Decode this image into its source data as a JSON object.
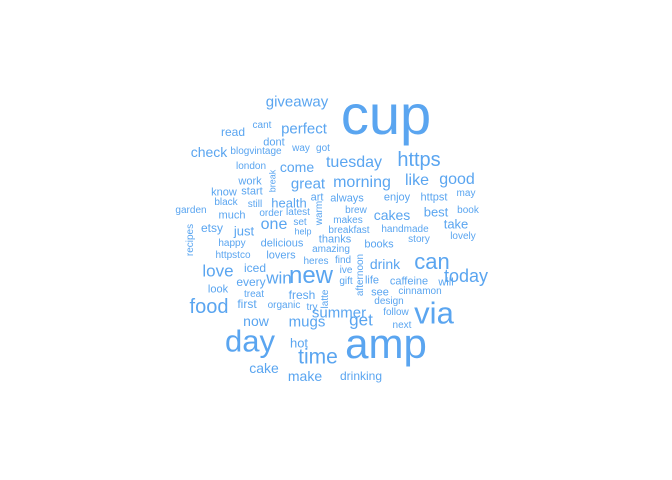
{
  "word_color": "#5aa5f0",
  "words": [
    "cup",
    "amp",
    "day",
    "via",
    "https",
    "new",
    "time",
    "food",
    "can",
    "today",
    "tuesday",
    "morning",
    "like",
    "good",
    "great",
    "love",
    "win",
    "get",
    "mugs",
    "summer",
    "giveaway",
    "perfect",
    "check",
    "one",
    "health",
    "come",
    "cakes",
    "best",
    "take",
    "make",
    "drink",
    "now",
    "cake",
    "hot",
    "fresh",
    "drinking",
    "just",
    "iced",
    "every",
    "first",
    "look",
    "read",
    "cant",
    "dont",
    "way",
    "got",
    "blogvintage",
    "london",
    "work",
    "break",
    "start",
    "know",
    "black",
    "garden",
    "much",
    "etsy",
    "recipes",
    "happy",
    "httpstco",
    "lovers",
    "delicious",
    "heres",
    "find",
    "ive",
    "afternoon",
    "latte",
    "gift",
    "life",
    "caffeine",
    "see",
    "design",
    "follow",
    "next",
    "cinnamon",
    "will",
    "lovely",
    "story",
    "handmade",
    "books",
    "thanks",
    "amazing",
    "breakfast",
    "makes",
    "brew",
    "art",
    "always",
    "enjoy",
    "httpst",
    "may",
    "book",
    "warm",
    "set",
    "help",
    "latest",
    "order",
    "still",
    "treat",
    "organic",
    "try"
  ]
}
